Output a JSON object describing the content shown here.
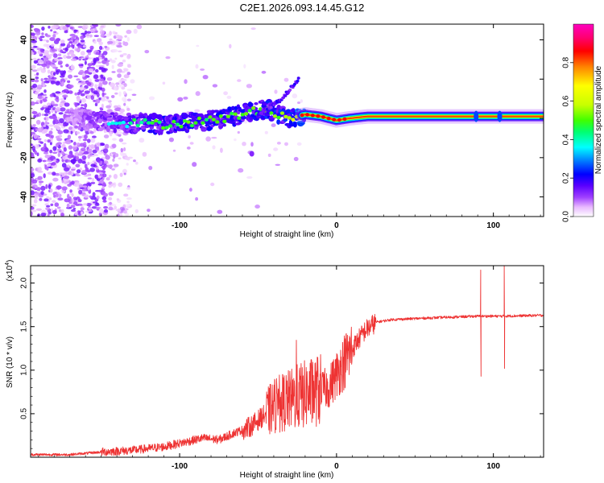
{
  "title": "C2E1.2026.093.14.45.G12",
  "chart_data": [
    {
      "type": "heatmap",
      "name": "spectrogram",
      "xlabel": "Height of straight line (km)",
      "ylabel": "Frequency (Hz)",
      "xlim": [
        -195,
        132
      ],
      "ylim": [
        -50,
        48
      ],
      "x_ticks": [
        -100,
        0,
        100
      ],
      "x_tick_labels": [
        "-100",
        "0",
        "100"
      ],
      "y_ticks": [
        -40,
        -20,
        0,
        20,
        40
      ],
      "y_tick_labels": [
        "-40",
        "-20",
        "0",
        "20",
        "40"
      ],
      "colorbar": {
        "label": "Normalized spectral amplitude",
        "range": [
          0,
          1
        ],
        "ticks": [
          0.0,
          0.2,
          0.4,
          0.6,
          0.8
        ],
        "tick_labels": [
          "0.0",
          "0.2",
          "0.4",
          "0.6",
          "0.8"
        ],
        "colors": [
          "#ffffff",
          "#e8b8ff",
          "#a040ff",
          "#5a00ff",
          "#0000ff",
          "#0090ff",
          "#00ffff",
          "#00ff70",
          "#40ff00",
          "#c8ff00",
          "#ffff00",
          "#ff8000",
          "#ff0000",
          "#ff0070",
          "#ff00c0"
        ]
      },
      "main_track": [
        {
          "x": -170,
          "f": 0,
          "amp": 0.2
        },
        {
          "x": -140,
          "f": -2,
          "amp": 0.35
        },
        {
          "x": -110,
          "f": -3,
          "amp": 0.45
        },
        {
          "x": -80,
          "f": -1,
          "amp": 0.45
        },
        {
          "x": -60,
          "f": 2,
          "amp": 0.45
        },
        {
          "x": -45,
          "f": 5,
          "amp": 0.5
        },
        {
          "x": -30,
          "f": 0,
          "amp": 0.5
        },
        {
          "x": -20,
          "f": 2,
          "amp": 0.65
        },
        {
          "x": -10,
          "f": 1,
          "amp": 0.8
        },
        {
          "x": 0,
          "f": -1,
          "amp": 0.85
        },
        {
          "x": 8,
          "f": 0,
          "amp": 0.9
        },
        {
          "x": 20,
          "f": 1,
          "amp": 0.9
        },
        {
          "x": 60,
          "f": 1,
          "amp": 0.9
        },
        {
          "x": 90,
          "f": 1,
          "amp": 0.9
        },
        {
          "x": 105,
          "f": 1,
          "amp": 0.9
        },
        {
          "x": 130,
          "f": 1,
          "amp": 0.9
        }
      ],
      "branch_track": [
        {
          "x": -50,
          "f": 2
        },
        {
          "x": -35,
          "f": 10
        },
        {
          "x": -24,
          "f": 20
        }
      ]
    },
    {
      "type": "line",
      "name": "snr",
      "xlabel": "Height of straight line (km)",
      "ylabel": "SNR (10 * v/v)",
      "multiplier_label": "(x10",
      "multiplier_exp": "4",
      "xlim": [
        -195,
        132
      ],
      "ylim": [
        0,
        2.2
      ],
      "x_ticks": [
        -100,
        0,
        100
      ],
      "x_tick_labels": [
        "-100",
        "0",
        "100"
      ],
      "y_ticks": [
        0.5,
        1.0,
        1.5,
        2.0
      ],
      "y_tick_labels": [
        "0.5",
        "1.0",
        "1.5",
        "2.0"
      ],
      "color": "#ee3333",
      "series": [
        {
          "name": "SNR",
          "x": [
            -195,
            -170,
            -150,
            -130,
            -110,
            -95,
            -85,
            -75,
            -65,
            -55,
            -45,
            -38,
            -30,
            -24,
            -15,
            -5,
            5,
            12,
            18,
            25,
            35,
            60,
            90,
            105,
            132
          ],
          "y": [
            0.03,
            0.03,
            0.06,
            0.08,
            0.12,
            0.18,
            0.22,
            0.2,
            0.28,
            0.35,
            0.5,
            0.62,
            0.65,
            0.7,
            0.75,
            0.8,
            1.1,
            1.3,
            1.45,
            1.55,
            1.58,
            1.6,
            1.62,
            1.62,
            1.63
          ]
        }
      ],
      "spikes": [
        {
          "x": 92,
          "min": 0.93,
          "max": 2.15
        },
        {
          "x": 107,
          "min": 1.02,
          "max": 2.2
        }
      ]
    }
  ]
}
